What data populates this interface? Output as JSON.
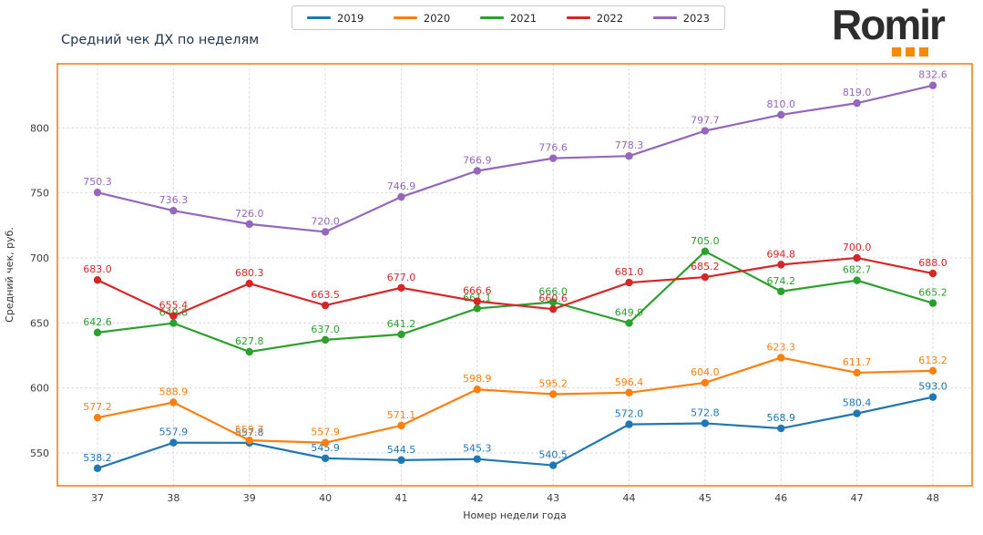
{
  "header": {
    "logo_text": "Romir",
    "logo_color": "#2d2d2d",
    "logo_accent_color": "#f28b00",
    "logo_squares_count": 3
  },
  "chart_data": {
    "type": "line",
    "title": "Средний чек ДХ по неделям",
    "xlabel": "Номер недели года",
    "ylabel": "Средний чек, руб.",
    "x": [
      37,
      38,
      39,
      40,
      41,
      42,
      43,
      44,
      45,
      46,
      47,
      48
    ],
    "yticks": [
      550,
      600,
      650,
      700,
      750,
      800
    ],
    "ylim": [
      524,
      850
    ],
    "grid": true,
    "grid_style": "dashed",
    "legend_position": "top-center",
    "plot_border_color": "#ff7f0e",
    "series": [
      {
        "name": "2019",
        "color": "#1f77b4",
        "values": [
          538.2,
          557.9,
          557.8,
          545.9,
          544.5,
          545.3,
          540.5,
          572.0,
          572.8,
          568.9,
          580.4,
          593.0
        ]
      },
      {
        "name": "2020",
        "color": "#ff7f0e",
        "values": [
          577.2,
          588.9,
          559.7,
          557.9,
          571.1,
          598.9,
          595.2,
          596.4,
          604.0,
          623.3,
          611.7,
          613.2
        ]
      },
      {
        "name": "2021",
        "color": "#2ca02c",
        "values": [
          642.6,
          649.8,
          627.8,
          637.0,
          641.2,
          661.1,
          666.0,
          649.9,
          705.0,
          674.2,
          682.7,
          665.2
        ]
      },
      {
        "name": "2022",
        "color": "#d62728",
        "values": [
          683.0,
          655.4,
          680.3,
          663.5,
          677.0,
          666.6,
          660.6,
          681.0,
          685.2,
          694.8,
          700.0,
          688.0
        ]
      },
      {
        "name": "2023",
        "color": "#9467bd",
        "values": [
          750.3,
          736.3,
          726.0,
          720.0,
          746.9,
          766.9,
          776.6,
          778.3,
          797.7,
          810.0,
          819.0,
          832.6
        ]
      }
    ]
  }
}
